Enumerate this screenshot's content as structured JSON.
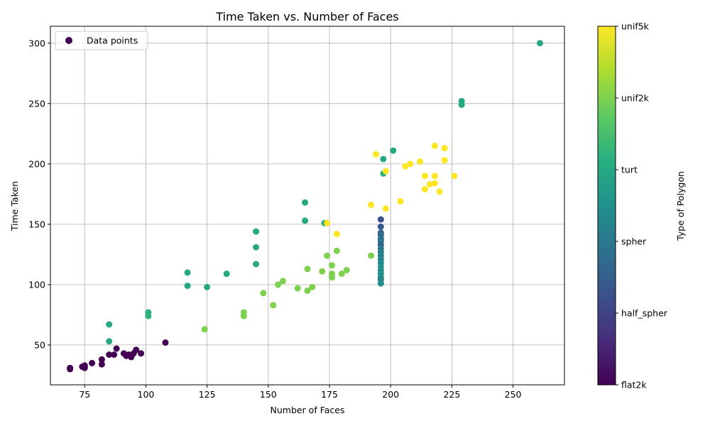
{
  "chart_data": {
    "type": "scatter",
    "title": "Time Taken vs. Number of Faces",
    "xlabel": "Number of Faces",
    "ylabel": "Time Taken",
    "xlim": [
      61,
      271
    ],
    "ylim": [
      17,
      314
    ],
    "xticks": [
      75,
      100,
      125,
      150,
      175,
      200,
      225,
      250
    ],
    "yticks": [
      50,
      100,
      150,
      200,
      250,
      300
    ],
    "grid": true,
    "legend": {
      "label": "Data points",
      "position": "top-left"
    },
    "colorbar": {
      "label": "Type of Polygon",
      "range": [
        0,
        5
      ],
      "ticks": [
        {
          "value": 0,
          "label": "flat2k"
        },
        {
          "value": 1,
          "label": "half_spher"
        },
        {
          "value": 2,
          "label": "spher"
        },
        {
          "value": 3,
          "label": "turt"
        },
        {
          "value": 4,
          "label": "unif2k"
        },
        {
          "value": 5,
          "label": "unif5k"
        }
      ]
    },
    "points": [
      {
        "x": 69,
        "y": 31,
        "c": 0
      },
      {
        "x": 69,
        "y": 30,
        "c": 0
      },
      {
        "x": 74,
        "y": 32,
        "c": 0
      },
      {
        "x": 75,
        "y": 33,
        "c": 0
      },
      {
        "x": 75,
        "y": 31,
        "c": 0
      },
      {
        "x": 78,
        "y": 35,
        "c": 0
      },
      {
        "x": 82,
        "y": 38,
        "c": 0
      },
      {
        "x": 82,
        "y": 34,
        "c": 0
      },
      {
        "x": 85,
        "y": 42,
        "c": 0
      },
      {
        "x": 87,
        "y": 42,
        "c": 0
      },
      {
        "x": 88,
        "y": 47,
        "c": 0
      },
      {
        "x": 91,
        "y": 43,
        "c": 0
      },
      {
        "x": 92,
        "y": 41,
        "c": 0
      },
      {
        "x": 93,
        "y": 42,
        "c": 0
      },
      {
        "x": 94,
        "y": 40,
        "c": 0
      },
      {
        "x": 95,
        "y": 43,
        "c": 0
      },
      {
        "x": 96,
        "y": 46,
        "c": 0
      },
      {
        "x": 98,
        "y": 43,
        "c": 0
      },
      {
        "x": 108,
        "y": 52,
        "c": 0
      },
      {
        "x": 196,
        "y": 154,
        "c": 1.2
      },
      {
        "x": 196,
        "y": 148,
        "c": 1.4
      },
      {
        "x": 196,
        "y": 143,
        "c": 1.6
      },
      {
        "x": 196,
        "y": 141,
        "c": 1.7
      },
      {
        "x": 196,
        "y": 138,
        "c": 1.8
      },
      {
        "x": 196,
        "y": 136,
        "c": 1.9
      },
      {
        "x": 196,
        "y": 133,
        "c": 1.5
      },
      {
        "x": 196,
        "y": 130,
        "c": 2.0
      },
      {
        "x": 196,
        "y": 127,
        "c": 2.1
      },
      {
        "x": 196,
        "y": 124,
        "c": 2.2
      },
      {
        "x": 196,
        "y": 121,
        "c": 2.3
      },
      {
        "x": 196,
        "y": 118,
        "c": 2.4
      },
      {
        "x": 196,
        "y": 115,
        "c": 2.5
      },
      {
        "x": 196,
        "y": 112,
        "c": 2.4
      },
      {
        "x": 196,
        "y": 109,
        "c": 2.5
      },
      {
        "x": 196,
        "y": 106,
        "c": 2.4
      },
      {
        "x": 196,
        "y": 104,
        "c": 2.3
      },
      {
        "x": 196,
        "y": 101,
        "c": 2.4
      },
      {
        "x": 85,
        "y": 67,
        "c": 3
      },
      {
        "x": 85,
        "y": 53,
        "c": 3
      },
      {
        "x": 101,
        "y": 77,
        "c": 3.2
      },
      {
        "x": 101,
        "y": 74,
        "c": 3.2
      },
      {
        "x": 117,
        "y": 110,
        "c": 3
      },
      {
        "x": 117,
        "y": 99,
        "c": 3
      },
      {
        "x": 125,
        "y": 98,
        "c": 3
      },
      {
        "x": 133,
        "y": 109,
        "c": 3
      },
      {
        "x": 145,
        "y": 144,
        "c": 3
      },
      {
        "x": 145,
        "y": 131,
        "c": 3
      },
      {
        "x": 145,
        "y": 117,
        "c": 3
      },
      {
        "x": 165,
        "y": 168,
        "c": 3
      },
      {
        "x": 165,
        "y": 153,
        "c": 3
      },
      {
        "x": 173,
        "y": 151,
        "c": 3
      },
      {
        "x": 197,
        "y": 204,
        "c": 3
      },
      {
        "x": 197,
        "y": 192,
        "c": 3.2
      },
      {
        "x": 201,
        "y": 211,
        "c": 3
      },
      {
        "x": 229,
        "y": 252,
        "c": 3
      },
      {
        "x": 229,
        "y": 249,
        "c": 3
      },
      {
        "x": 261,
        "y": 300,
        "c": 3
      },
      {
        "x": 124,
        "y": 63,
        "c": 4
      },
      {
        "x": 140,
        "y": 77,
        "c": 4
      },
      {
        "x": 140,
        "y": 74,
        "c": 4
      },
      {
        "x": 148,
        "y": 93,
        "c": 4
      },
      {
        "x": 152,
        "y": 83,
        "c": 4
      },
      {
        "x": 154,
        "y": 100,
        "c": 4
      },
      {
        "x": 156,
        "y": 103,
        "c": 4
      },
      {
        "x": 162,
        "y": 97,
        "c": 4
      },
      {
        "x": 166,
        "y": 95,
        "c": 4
      },
      {
        "x": 166,
        "y": 113,
        "c": 4
      },
      {
        "x": 168,
        "y": 98,
        "c": 4
      },
      {
        "x": 172,
        "y": 111,
        "c": 4
      },
      {
        "x": 174,
        "y": 124,
        "c": 4
      },
      {
        "x": 176,
        "y": 116,
        "c": 4
      },
      {
        "x": 176,
        "y": 109,
        "c": 4
      },
      {
        "x": 176,
        "y": 106,
        "c": 4
      },
      {
        "x": 178,
        "y": 128,
        "c": 4
      },
      {
        "x": 180,
        "y": 109,
        "c": 4
      },
      {
        "x": 182,
        "y": 112,
        "c": 4
      },
      {
        "x": 192,
        "y": 124,
        "c": 4
      },
      {
        "x": 174,
        "y": 151,
        "c": 5
      },
      {
        "x": 178,
        "y": 142,
        "c": 5
      },
      {
        "x": 192,
        "y": 166,
        "c": 5
      },
      {
        "x": 194,
        "y": 208,
        "c": 5
      },
      {
        "x": 198,
        "y": 194,
        "c": 5
      },
      {
        "x": 198,
        "y": 163,
        "c": 5
      },
      {
        "x": 204,
        "y": 169,
        "c": 5
      },
      {
        "x": 206,
        "y": 198,
        "c": 5
      },
      {
        "x": 208,
        "y": 200,
        "c": 5
      },
      {
        "x": 212,
        "y": 202,
        "c": 5
      },
      {
        "x": 214,
        "y": 190,
        "c": 5
      },
      {
        "x": 214,
        "y": 179,
        "c": 5
      },
      {
        "x": 216,
        "y": 183,
        "c": 5
      },
      {
        "x": 218,
        "y": 215,
        "c": 5
      },
      {
        "x": 218,
        "y": 190,
        "c": 5
      },
      {
        "x": 218,
        "y": 184,
        "c": 5
      },
      {
        "x": 220,
        "y": 177,
        "c": 5
      },
      {
        "x": 222,
        "y": 213,
        "c": 5
      },
      {
        "x": 222,
        "y": 203,
        "c": 5
      },
      {
        "x": 226,
        "y": 190,
        "c": 5
      }
    ]
  }
}
